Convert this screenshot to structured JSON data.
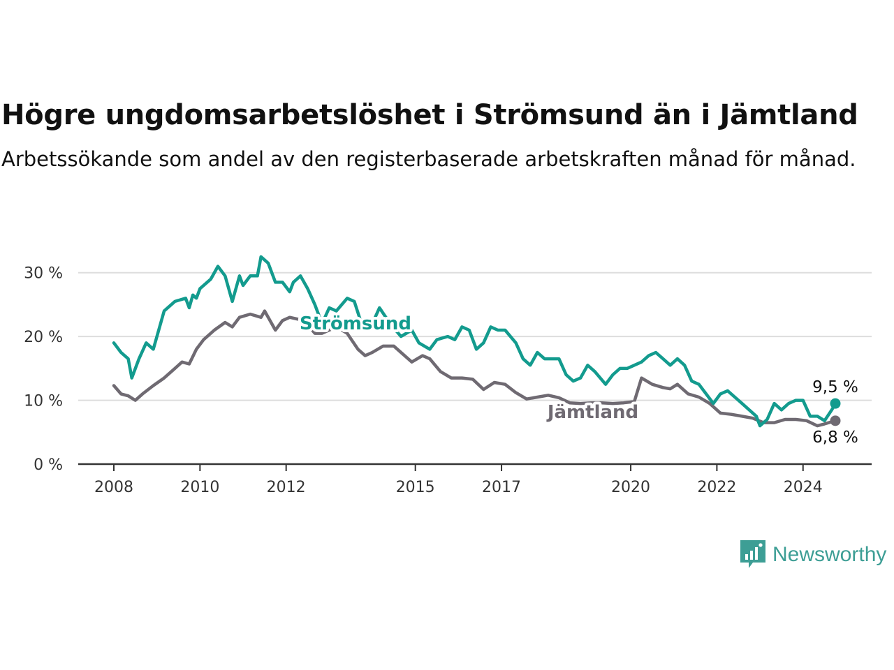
{
  "header": {
    "title": "Högre ungdomsarbetslöshet i Strömsund än i Jämtland",
    "subtitle": "Arbetssökande som andel av den registerbaserade arbetskraften månad för månad."
  },
  "brand": {
    "name": "Newsworthy",
    "icon": "newsworthy-logo-icon",
    "color": "#3d9e95"
  },
  "chart_data": {
    "type": "line",
    "title": "Högre ungdomsarbetslöshet i Strömsund än i Jämtland",
    "subtitle": "Arbetssökande som andel av den registerbaserade arbetskraften månad för månad.",
    "xlabel": "",
    "ylabel": "",
    "x_range": [
      "2008-01",
      "2024-10"
    ],
    "ylim": [
      0,
      35
    ],
    "y_ticks": [
      0,
      10,
      20,
      30
    ],
    "y_tick_labels": [
      "0 %",
      "10 %",
      "20 %",
      "30 %"
    ],
    "x_ticks": [
      "2008",
      "2010",
      "2012",
      "2015",
      "2017",
      "2020",
      "2022",
      "2024"
    ],
    "grid": "horizontal",
    "legend": "direct labels on lines",
    "series": [
      {
        "name": "Strömsund",
        "color": "#139b8e",
        "end_label": "9,5 %",
        "points": [
          [
            "2008-01",
            19.0
          ],
          [
            "2008-03",
            17.5
          ],
          [
            "2008-05",
            16.5
          ],
          [
            "2008-06",
            13.5
          ],
          [
            "2008-08",
            16.5
          ],
          [
            "2008-10",
            19.0
          ],
          [
            "2008-12",
            18.0
          ],
          [
            "2009-03",
            24.0
          ],
          [
            "2009-06",
            25.5
          ],
          [
            "2009-09",
            26.0
          ],
          [
            "2009-10",
            24.5
          ],
          [
            "2009-11",
            26.5
          ],
          [
            "2009-12",
            26.0
          ],
          [
            "2010-01",
            27.5
          ],
          [
            "2010-04",
            29.0
          ],
          [
            "2010-06",
            31.0
          ],
          [
            "2010-08",
            29.5
          ],
          [
            "2010-10",
            25.5
          ],
          [
            "2010-12",
            29.5
          ],
          [
            "2011-01",
            28.0
          ],
          [
            "2011-03",
            29.5
          ],
          [
            "2011-05",
            29.5
          ],
          [
            "2011-06",
            32.5
          ],
          [
            "2011-08",
            31.5
          ],
          [
            "2011-10",
            28.5
          ],
          [
            "2011-12",
            28.5
          ],
          [
            "2012-02",
            27.0
          ],
          [
            "2012-03",
            28.5
          ],
          [
            "2012-05",
            29.5
          ],
          [
            "2012-07",
            27.5
          ],
          [
            "2012-09",
            25.0
          ],
          [
            "2012-11",
            22.0
          ],
          [
            "2013-01",
            24.5
          ],
          [
            "2013-03",
            24.0
          ],
          [
            "2013-06",
            26.0
          ],
          [
            "2013-08",
            25.5
          ],
          [
            "2013-10",
            22.0
          ],
          [
            "2014-01",
            22.0
          ],
          [
            "2014-03",
            24.5
          ],
          [
            "2014-06",
            22.0
          ],
          [
            "2014-09",
            20.0
          ],
          [
            "2014-12",
            21.0
          ],
          [
            "2015-02",
            19.0
          ],
          [
            "2015-05",
            18.0
          ],
          [
            "2015-07",
            19.5
          ],
          [
            "2015-10",
            20.0
          ],
          [
            "2015-12",
            19.5
          ],
          [
            "2016-02",
            21.5
          ],
          [
            "2016-04",
            21.0
          ],
          [
            "2016-06",
            18.0
          ],
          [
            "2016-08",
            19.0
          ],
          [
            "2016-10",
            21.5
          ],
          [
            "2016-12",
            21.0
          ],
          [
            "2017-02",
            21.0
          ],
          [
            "2017-05",
            19.0
          ],
          [
            "2017-07",
            16.5
          ],
          [
            "2017-09",
            15.5
          ],
          [
            "2017-11",
            17.5
          ],
          [
            "2018-01",
            16.5
          ],
          [
            "2018-03",
            16.5
          ],
          [
            "2018-05",
            16.5
          ],
          [
            "2018-07",
            14.0
          ],
          [
            "2018-09",
            13.0
          ],
          [
            "2018-11",
            13.5
          ],
          [
            "2019-01",
            15.5
          ],
          [
            "2019-03",
            14.5
          ],
          [
            "2019-06",
            12.5
          ],
          [
            "2019-08",
            14.0
          ],
          [
            "2019-10",
            15.0
          ],
          [
            "2019-12",
            15.0
          ],
          [
            "2020-02",
            15.5
          ],
          [
            "2020-04",
            16.0
          ],
          [
            "2020-06",
            17.0
          ],
          [
            "2020-08",
            17.5
          ],
          [
            "2020-10",
            16.5
          ],
          [
            "2020-12",
            15.5
          ],
          [
            "2021-02",
            16.5
          ],
          [
            "2021-04",
            15.5
          ],
          [
            "2021-06",
            13.0
          ],
          [
            "2021-08",
            12.5
          ],
          [
            "2021-10",
            11.0
          ],
          [
            "2021-12",
            9.5
          ],
          [
            "2022-02",
            11.0
          ],
          [
            "2022-04",
            11.5
          ],
          [
            "2022-06",
            10.5
          ],
          [
            "2022-08",
            9.5
          ],
          [
            "2022-10",
            8.5
          ],
          [
            "2022-12",
            7.5
          ],
          [
            "2023-01",
            6.0
          ],
          [
            "2023-03",
            7.0
          ],
          [
            "2023-05",
            9.5
          ],
          [
            "2023-07",
            8.5
          ],
          [
            "2023-09",
            9.5
          ],
          [
            "2023-11",
            10.0
          ],
          [
            "2024-01",
            10.0
          ],
          [
            "2024-03",
            7.5
          ],
          [
            "2024-05",
            7.5
          ],
          [
            "2024-07",
            6.8
          ],
          [
            "2024-09",
            8.5
          ],
          [
            "2024-10",
            9.5
          ]
        ]
      },
      {
        "name": "Jämtland",
        "color": "#6f6a72",
        "end_label": "6,8 %",
        "points": [
          [
            "2008-01",
            12.3
          ],
          [
            "2008-03",
            11.0
          ],
          [
            "2008-05",
            10.7
          ],
          [
            "2008-07",
            10.0
          ],
          [
            "2008-09",
            11.0
          ],
          [
            "2008-12",
            12.3
          ],
          [
            "2009-03",
            13.5
          ],
          [
            "2009-06",
            15.0
          ],
          [
            "2009-08",
            16.0
          ],
          [
            "2009-10",
            15.7
          ],
          [
            "2009-12",
            18.0
          ],
          [
            "2010-02",
            19.5
          ],
          [
            "2010-05",
            21.0
          ],
          [
            "2010-08",
            22.2
          ],
          [
            "2010-10",
            21.5
          ],
          [
            "2010-12",
            23.0
          ],
          [
            "2011-03",
            23.5
          ],
          [
            "2011-06",
            23.0
          ],
          [
            "2011-07",
            24.0
          ],
          [
            "2011-10",
            21.0
          ],
          [
            "2011-12",
            22.5
          ],
          [
            "2012-02",
            23.0
          ],
          [
            "2012-06",
            22.5
          ],
          [
            "2012-09",
            20.5
          ],
          [
            "2012-11",
            20.5
          ],
          [
            "2013-01",
            21.0
          ],
          [
            "2013-03",
            21.5
          ],
          [
            "2013-06",
            20.5
          ],
          [
            "2013-09",
            18.0
          ],
          [
            "2013-11",
            17.0
          ],
          [
            "2014-01",
            17.5
          ],
          [
            "2014-04",
            18.5
          ],
          [
            "2014-07",
            18.5
          ],
          [
            "2014-10",
            17.0
          ],
          [
            "2014-12",
            16.0
          ],
          [
            "2015-03",
            17.0
          ],
          [
            "2015-05",
            16.5
          ],
          [
            "2015-08",
            14.5
          ],
          [
            "2015-11",
            13.5
          ],
          [
            "2016-02",
            13.5
          ],
          [
            "2016-05",
            13.3
          ],
          [
            "2016-08",
            11.7
          ],
          [
            "2016-11",
            12.8
          ],
          [
            "2017-02",
            12.5
          ],
          [
            "2017-05",
            11.2
          ],
          [
            "2017-08",
            10.2
          ],
          [
            "2017-11",
            10.5
          ],
          [
            "2018-02",
            10.8
          ],
          [
            "2018-05",
            10.4
          ],
          [
            "2018-08",
            9.6
          ],
          [
            "2018-11",
            9.5
          ],
          [
            "2019-02",
            9.6
          ],
          [
            "2019-05",
            9.6
          ],
          [
            "2019-08",
            9.5
          ],
          [
            "2019-11",
            9.6
          ],
          [
            "2020-02",
            9.8
          ],
          [
            "2020-04",
            13.5
          ],
          [
            "2020-07",
            12.5
          ],
          [
            "2020-10",
            12.0
          ],
          [
            "2020-12",
            11.8
          ],
          [
            "2021-02",
            12.5
          ],
          [
            "2021-05",
            11.0
          ],
          [
            "2021-08",
            10.5
          ],
          [
            "2021-11",
            9.5
          ],
          [
            "2022-02",
            8.0
          ],
          [
            "2022-05",
            7.8
          ],
          [
            "2022-08",
            7.5
          ],
          [
            "2022-11",
            7.2
          ],
          [
            "2023-02",
            6.5
          ],
          [
            "2023-05",
            6.5
          ],
          [
            "2023-08",
            7.0
          ],
          [
            "2023-11",
            7.0
          ],
          [
            "2024-02",
            6.8
          ],
          [
            "2024-05",
            6.0
          ],
          [
            "2024-07",
            6.3
          ],
          [
            "2024-10",
            6.8
          ]
        ]
      }
    ]
  }
}
